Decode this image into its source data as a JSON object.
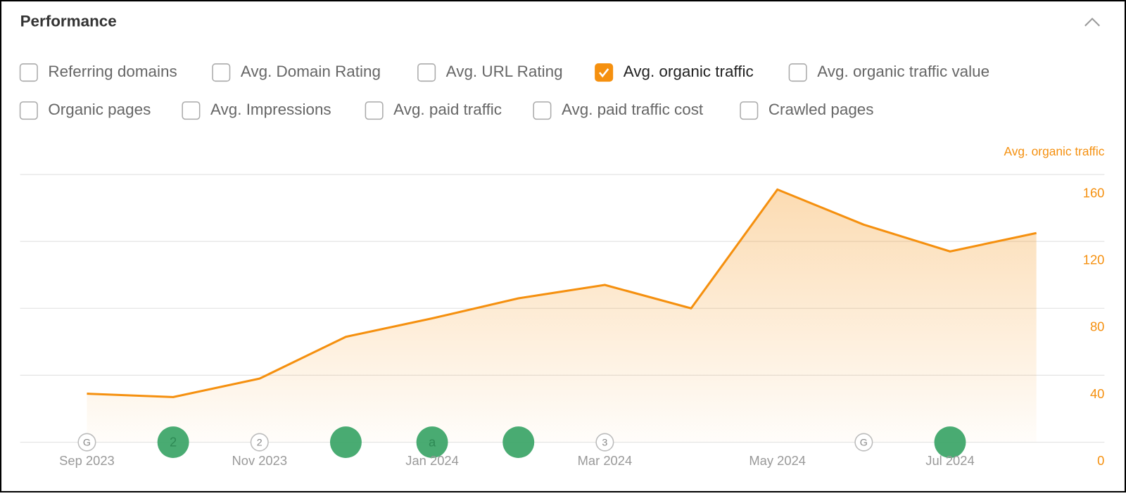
{
  "header": {
    "title": "Performance"
  },
  "checkboxes": [
    {
      "label": "Referring domains",
      "checked": false
    },
    {
      "label": "Avg. Domain Rating",
      "checked": false
    },
    {
      "label": "Avg. URL Rating",
      "checked": false
    },
    {
      "label": "Avg. organic traffic",
      "checked": true
    },
    {
      "label": "Avg. organic traffic value",
      "checked": false
    },
    {
      "label": "Organic pages",
      "checked": false
    },
    {
      "label": "Avg. Impressions",
      "checked": false
    },
    {
      "label": "Avg. paid traffic",
      "checked": false
    },
    {
      "label": "Avg. paid traffic cost",
      "checked": false
    },
    {
      "label": "Crawled pages",
      "checked": false
    }
  ],
  "chart_data": {
    "type": "line",
    "y_axis_label": "Avg. organic traffic",
    "categories": [
      "Sep 2023",
      null,
      "Nov 2023",
      null,
      "Jan 2024",
      null,
      "Mar 2024",
      null,
      "May 2024",
      null,
      "Jul 2024",
      null
    ],
    "values": [
      29,
      27,
      38,
      63,
      74,
      86,
      94,
      80,
      151,
      130,
      114,
      125
    ],
    "color": "#f5900f",
    "ylim": [
      0,
      160
    ],
    "yticks": [
      0,
      40,
      80,
      120,
      160
    ],
    "grid": true,
    "event_markers": [
      "G",
      "2",
      "2",
      null,
      "a",
      null,
      "3",
      null,
      null,
      "G",
      null,
      null
    ],
    "event_filled": [
      false,
      true,
      false,
      true,
      true,
      true,
      false,
      false,
      false,
      false,
      true,
      false
    ]
  }
}
